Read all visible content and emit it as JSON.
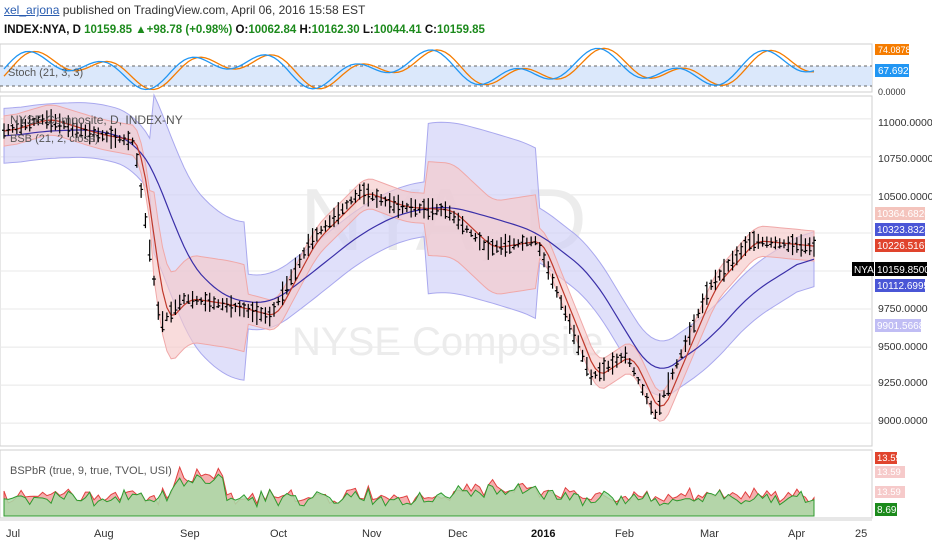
{
  "header": {
    "author": "xel_arjona",
    "published_text": "published on TradingView.com, April 06, 2016 15:58 EST",
    "symbol": "INDEX:NYA, D",
    "last": "10159.85",
    "change": "+98.78 (+0.98%)",
    "o_label": "O:",
    "o": "10062.84",
    "h_label": "H:",
    "h": "10162.30",
    "l_label": "L:",
    "l": "10044.41",
    "c_label": "C:",
    "c": "10159.85"
  },
  "watermark": {
    "ticker": "NYA, D",
    "name": "NYSE Composite"
  },
  "main_pane": {
    "title": "NYSE Composite, D, INDEX-NY",
    "indicator": "BSB (21, 2, close)",
    "price_ticks": [
      "11000.0000",
      "10750.0000",
      "10500.0000",
      "9750.0000",
      "9500.0000",
      "9250.0000",
      "9000.0000"
    ],
    "badges": {
      "b1": "10364.6826",
      "b2": "10323.8323",
      "b3": "10226.5167",
      "b4": "10159.8500",
      "b5": "10112.6995",
      "b6": "9901.5668"
    },
    "nya_tag": "NYA"
  },
  "stoch_pane": {
    "title": "Stoch (21, 3, 3)",
    "ticks": [
      "74.0878",
      "67.6927",
      "0.0000"
    ]
  },
  "bsp_pane": {
    "title": "BSPbR (true, 9, true, TVOL, USI)",
    "badges": {
      "b1": "13.59",
      "b2": "13.59",
      "b3": "13.59",
      "b4": "8.69"
    }
  },
  "time_axis": {
    "labels": [
      "Jul",
      "Aug",
      "Sep",
      "Oct",
      "Nov",
      "Dec",
      "2016",
      "Feb",
      "Mar",
      "Apr",
      "25"
    ]
  },
  "colors": {
    "grid": "#e8e8e8",
    "outer_band": "#b8b6f0",
    "inner_band": "#f2b8b8",
    "slow_ma": "#3a2fa8",
    "fast_ma": "#c0392b",
    "bars": "#000000",
    "stoch_k": "#2196f3",
    "stoch_d": "#f57c00",
    "bsp_green": "#7ec77e",
    "bsp_red": "#f08080",
    "badge_orange": "#f57c00",
    "badge_blue": "#4a56d6",
    "badge_red": "#e0442d",
    "badge_black": "#000000",
    "badge_green": "#1b8a1b"
  },
  "chart_data": {
    "type": "line",
    "title": "NYSE Composite, D, INDEX-NY",
    "x": [
      "2015-07-01",
      "2015-07-15",
      "2015-08-01",
      "2015-08-15",
      "2015-08-24",
      "2015-09-01",
      "2015-09-15",
      "2015-10-01",
      "2015-10-15",
      "2015-11-01",
      "2015-11-15",
      "2015-12-01",
      "2015-12-15",
      "2016-01-01",
      "2016-01-20",
      "2016-02-01",
      "2016-02-11",
      "2016-03-01",
      "2016-03-15",
      "2016-04-06"
    ],
    "series": [
      {
        "name": "NYA",
        "values": [
          10920,
          11000,
          10900,
          10850,
          9650,
          9820,
          9780,
          9700,
          10200,
          10520,
          10420,
          10400,
          10150,
          10200,
          9300,
          9450,
          9050,
          9900,
          10200,
          10159.85
        ]
      },
      {
        "name": "BSB (21, 2, close)",
        "values": [
          10880,
          10920,
          10930,
          10860,
          10600,
          10100,
          9820,
          9780,
          9980,
          10240,
          10380,
          10430,
          10360,
          10260,
          9980,
          9600,
          9300,
          9550,
          9850,
          10112.7
        ]
      }
    ],
    "ylim": [
      8850,
      11150
    ]
  }
}
